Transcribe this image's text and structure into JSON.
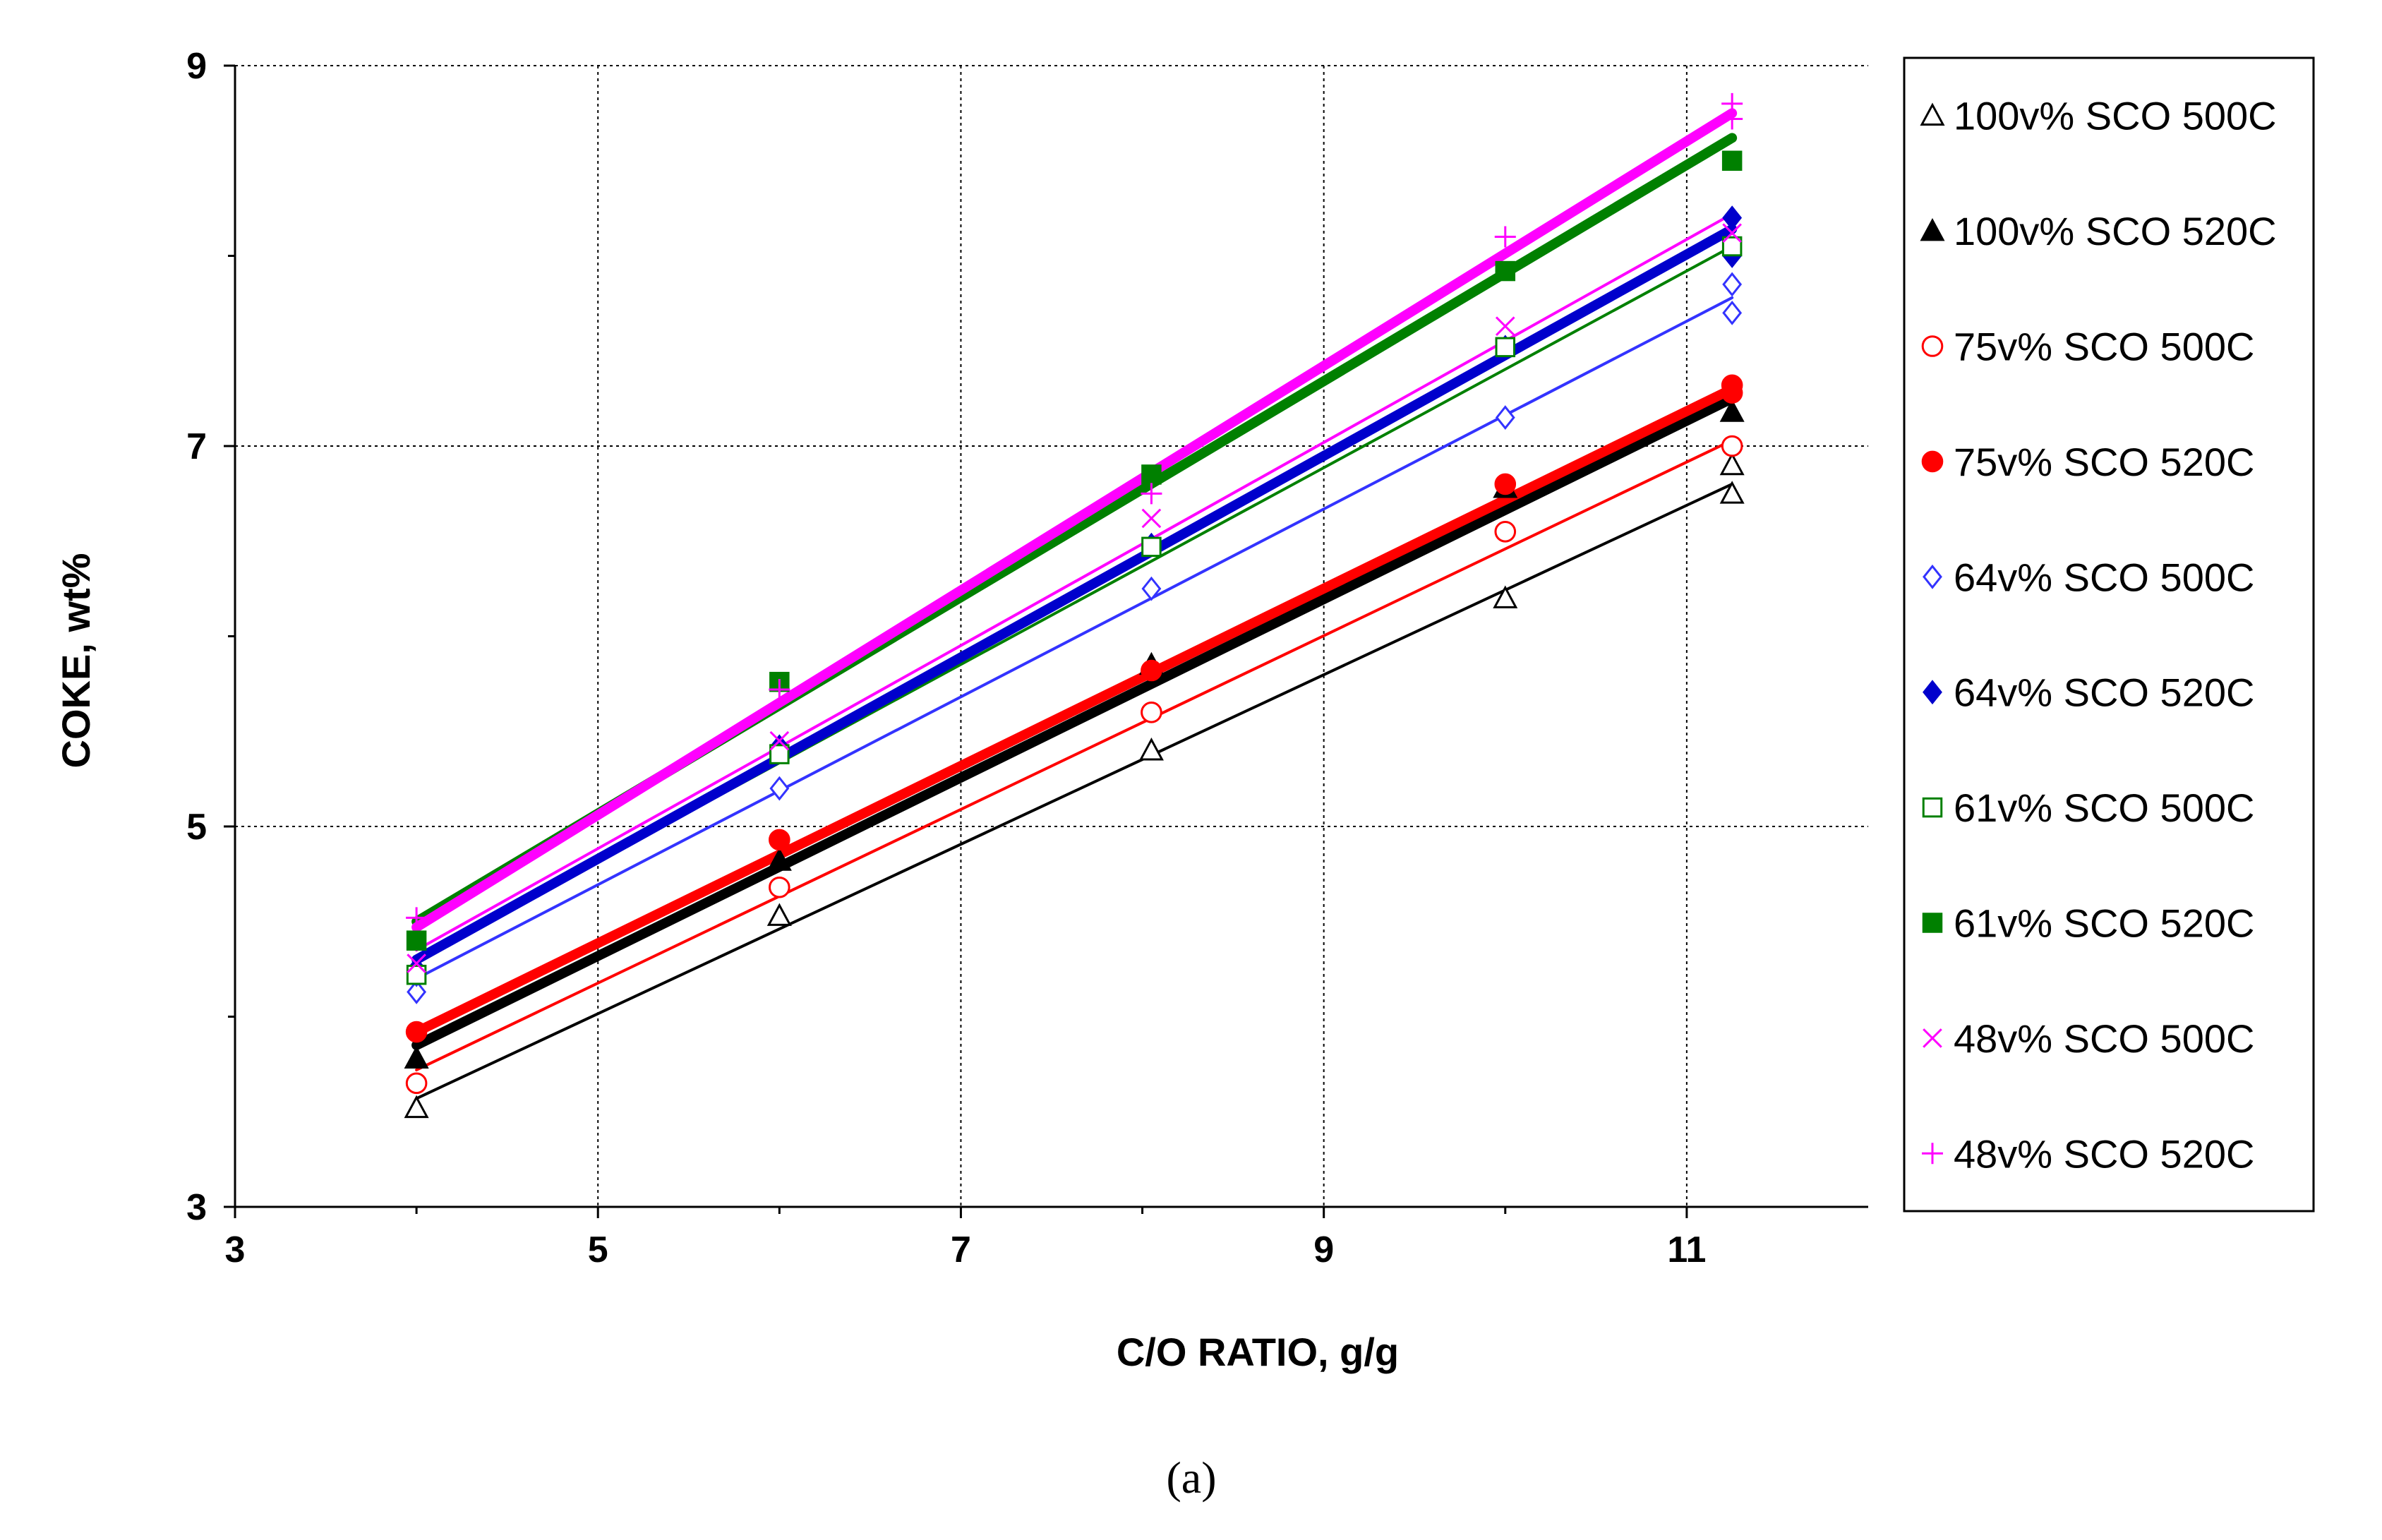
{
  "chart_data": {
    "type": "scatter",
    "title": "",
    "xlabel": "C/O RATIO, g/g",
    "ylabel": "COKE, wt%",
    "xlim": [
      3,
      12
    ],
    "ylim": [
      3,
      9
    ],
    "x_ticks": [
      3,
      5,
      7,
      9,
      11
    ],
    "y_ticks": [
      3,
      5,
      7,
      9
    ],
    "x_minor_ticks": [
      4,
      6,
      8,
      10
    ],
    "y_minor_ticks": [
      4,
      6,
      8
    ],
    "x_tick_labels": [
      "3",
      "5",
      "7",
      "9",
      "11"
    ],
    "y_tick_labels": [
      "3",
      "5",
      "7",
      "9"
    ],
    "grid": true,
    "legend_position": "right",
    "caption": "(a)",
    "series": [
      {
        "name": "100v% SCO 500C",
        "marker": "open-triangle",
        "color": "#000000",
        "line_weight": "thin",
        "x": [
          4.0,
          6.0,
          8.05,
          10.0,
          11.25,
          11.25
        ],
        "y": [
          3.52,
          4.53,
          5.4,
          6.2,
          6.75,
          6.9
        ],
        "fit": [
          3.57,
          6.8
        ]
      },
      {
        "name": "100v% SCO 520C",
        "marker": "filled-triangle",
        "color": "#000000",
        "line_weight": "thick",
        "x": [
          4.0,
          6.0,
          8.05,
          10.0,
          11.25
        ],
        "y": [
          3.78,
          4.82,
          5.85,
          6.78,
          7.18
        ],
        "fit": [
          3.85,
          7.25
        ]
      },
      {
        "name": "75v% SCO 500C",
        "marker": "open-circle",
        "color": "#ff0000",
        "line_weight": "thin",
        "x": [
          4.0,
          6.0,
          8.05,
          10.0,
          11.25
        ],
        "y": [
          3.65,
          4.68,
          5.6,
          6.55,
          7.0
        ],
        "fit": [
          3.72,
          7.03
        ]
      },
      {
        "name": "75v% SCO 520C",
        "marker": "filled-circle",
        "color": "#ff0000",
        "line_weight": "thick",
        "x": [
          4.0,
          6.0,
          8.05,
          10.0,
          11.25,
          11.25
        ],
        "y": [
          3.92,
          4.93,
          5.82,
          6.8,
          7.32,
          7.28
        ],
        "fit": [
          3.92,
          7.3
        ]
      },
      {
        "name": "64v% SCO 500C",
        "marker": "open-diamond",
        "color": "#3333ff",
        "line_weight": "thin",
        "x": [
          4.0,
          4.0,
          6.0,
          8.05,
          10.0,
          11.25,
          11.25
        ],
        "y": [
          4.13,
          4.22,
          5.2,
          6.25,
          7.15,
          7.7,
          7.85
        ],
        "fit": [
          4.2,
          7.78
        ]
      },
      {
        "name": "64v% SCO 520C",
        "marker": "filled-diamond",
        "color": "#0000cc",
        "line_weight": "thick",
        "x": [
          4.0,
          6.0,
          8.05,
          10.0,
          11.25,
          11.25
        ],
        "y": [
          4.25,
          5.42,
          6.48,
          7.52,
          8.0,
          8.2
        ],
        "fit": [
          4.3,
          8.14
        ]
      },
      {
        "name": "61v% SCO 500C",
        "marker": "open-square",
        "color": "#008000",
        "line_weight": "thin",
        "x": [
          4.0,
          6.0,
          8.05,
          10.0,
          11.25
        ],
        "y": [
          4.22,
          5.38,
          6.47,
          7.52,
          8.05
        ],
        "fit": [
          4.3,
          8.05
        ]
      },
      {
        "name": "61v% SCO 520C",
        "marker": "filled-square",
        "color": "#008000",
        "line_weight": "thick",
        "x": [
          4.0,
          6.0,
          8.05,
          10.0,
          11.25
        ],
        "y": [
          4.4,
          5.76,
          6.85,
          7.92,
          8.5
        ],
        "fit": [
          4.5,
          8.62
        ]
      },
      {
        "name": "48v% SCO 500C",
        "marker": "x",
        "color": "#ff00ff",
        "line_weight": "thin",
        "x": [
          4.0,
          6.0,
          8.05,
          10.0,
          11.25
        ],
        "y": [
          4.28,
          5.45,
          6.62,
          7.63,
          8.12
        ],
        "fit": [
          4.35,
          8.22
        ]
      },
      {
        "name": "48v% SCO 520C",
        "marker": "plus",
        "color": "#ff00ff",
        "line_weight": "thick",
        "x": [
          4.0,
          6.0,
          8.05,
          10.0,
          11.25,
          11.25
        ],
        "y": [
          4.52,
          5.72,
          6.75,
          8.1,
          8.72,
          8.8
        ],
        "fit": [
          4.47,
          8.75
        ]
      }
    ]
  }
}
